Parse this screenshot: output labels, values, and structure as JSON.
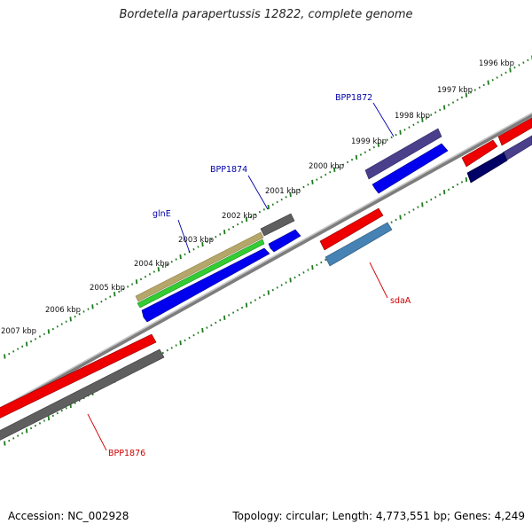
{
  "title": "Bordetella parapertussis 12822, complete genome",
  "footer": {
    "accession": "Accession: NC_002928",
    "topology": "Topology: circular; Length: 4,773,551 bp; Genes: 4,249"
  },
  "ruler": {
    "unit": "kbp",
    "labels": [
      "1996 kbp",
      "1997 kbp",
      "1998 kbp",
      "1999 kbp",
      "2000 kbp",
      "2001 kbp",
      "2002 kbp",
      "2003 kbp",
      "2004 kbp",
      "2005 kbp",
      "2006 kbp",
      "2007 kbp"
    ]
  },
  "genes": [
    {
      "name": "BPP1872",
      "color": "#0000aa"
    },
    {
      "name": "BPP1874",
      "color": "#0000aa"
    },
    {
      "name": "glnE",
      "color": "#0000aa"
    },
    {
      "name": "sdaA",
      "color": "#cc0000"
    },
    {
      "name": "BPP1876",
      "color": "#cc0000"
    }
  ],
  "colors": {
    "backbone": "#8c8c8c",
    "tick": "#1f7a1f",
    "forward_cds": "#0000ee",
    "reverse_cds": "#ee0000",
    "gray_feature": "#555555",
    "purple_feature": "#4a3f8a",
    "steelblue_feature": "#4682b4",
    "olive_feature": "#b5a66a",
    "green_feature": "#33cc33",
    "navy_feature": "#000066"
  }
}
